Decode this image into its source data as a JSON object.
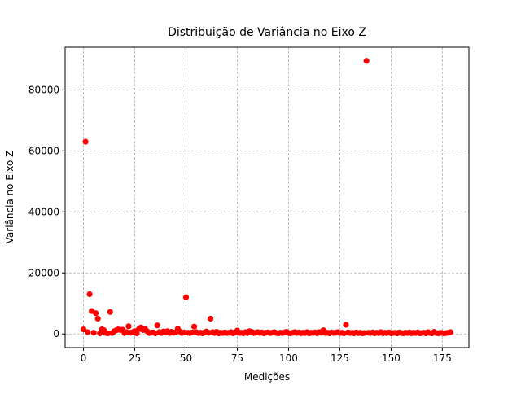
{
  "chart_data": {
    "type": "scatter",
    "title": "Distribuição de Variância no Eixo Z",
    "x_label": "Medições",
    "y_label": "Variância no Eixo Z",
    "color": "#ff0000",
    "grid": true,
    "xlim": [
      -8.95,
      187.95
    ],
    "ylim": [
      -4475,
      93975
    ],
    "xticks": [
      0,
      25,
      50,
      75,
      100,
      125,
      150,
      175
    ],
    "yticks": [
      0,
      20000,
      40000,
      60000,
      80000
    ],
    "x": [
      0,
      1,
      2,
      3,
      4,
      5,
      6,
      7,
      8,
      9,
      10,
      11,
      12,
      13,
      14,
      15,
      16,
      17,
      18,
      19,
      20,
      21,
      22,
      23,
      24,
      25,
      26,
      27,
      28,
      29,
      30,
      31,
      32,
      33,
      34,
      35,
      36,
      37,
      38,
      39,
      40,
      41,
      42,
      43,
      44,
      45,
      46,
      47,
      48,
      49,
      50,
      51,
      52,
      53,
      54,
      55,
      56,
      57,
      58,
      59,
      60,
      61,
      62,
      63,
      64,
      65,
      66,
      67,
      68,
      69,
      70,
      71,
      72,
      73,
      74,
      75,
      76,
      77,
      78,
      79,
      80,
      81,
      82,
      83,
      84,
      85,
      86,
      87,
      88,
      89,
      90,
      91,
      92,
      93,
      94,
      95,
      96,
      97,
      98,
      99,
      100,
      101,
      102,
      103,
      104,
      105,
      106,
      107,
      108,
      109,
      110,
      111,
      112,
      113,
      114,
      115,
      116,
      117,
      118,
      119,
      120,
      121,
      122,
      123,
      124,
      125,
      126,
      127,
      128,
      129,
      130,
      131,
      132,
      133,
      134,
      135,
      136,
      137,
      138,
      139,
      140,
      141,
      142,
      143,
      144,
      145,
      146,
      147,
      148,
      149,
      150,
      151,
      152,
      153,
      154,
      155,
      156,
      157,
      158,
      159,
      160,
      161,
      162,
      163,
      164,
      165,
      166,
      167,
      168,
      169,
      170,
      171,
      172,
      173,
      174,
      175,
      176,
      177,
      178,
      179
    ],
    "values": [
      1500,
      63000,
      600,
      13000,
      7500,
      400,
      6800,
      5000,
      200,
      1500,
      1200,
      300,
      200,
      7200,
      300,
      900,
      1200,
      1500,
      1300,
      1400,
      300,
      600,
      2500,
      400,
      600,
      900,
      200,
      1600,
      2100,
      1300,
      1700,
      900,
      300,
      400,
      500,
      200,
      2800,
      600,
      300,
      800,
      500,
      900,
      300,
      700,
      400,
      600,
      1700,
      800,
      300,
      500,
      12000,
      400,
      300,
      500,
      2400,
      600,
      300,
      400,
      200,
      500,
      800,
      400,
      5000,
      600,
      300,
      700,
      200,
      400,
      300,
      500,
      300,
      400,
      600,
      200,
      500,
      1100,
      300,
      400,
      200,
      600,
      300,
      900,
      700,
      300,
      400,
      600,
      300,
      500,
      200,
      400,
      500,
      300,
      400,
      600,
      300,
      200,
      400,
      300,
      500,
      700,
      300,
      200,
      400,
      600,
      300,
      500,
      200,
      400,
      300,
      600,
      200,
      400,
      300,
      500,
      200,
      600,
      400,
      1200,
      300,
      400,
      200,
      500,
      300,
      400,
      600,
      300,
      400,
      200,
      3000,
      500,
      300,
      400,
      200,
      500,
      300,
      400,
      200,
      300,
      89500,
      400,
      300,
      500,
      200,
      400,
      300,
      600,
      200,
      400,
      300,
      500,
      200,
      300,
      400,
      200,
      500,
      300,
      200,
      400,
      300,
      500,
      200,
      400,
      300,
      500,
      200,
      300,
      400,
      200,
      600,
      300,
      200,
      700,
      300,
      200,
      400,
      300,
      200,
      300,
      400,
      600
    ]
  }
}
